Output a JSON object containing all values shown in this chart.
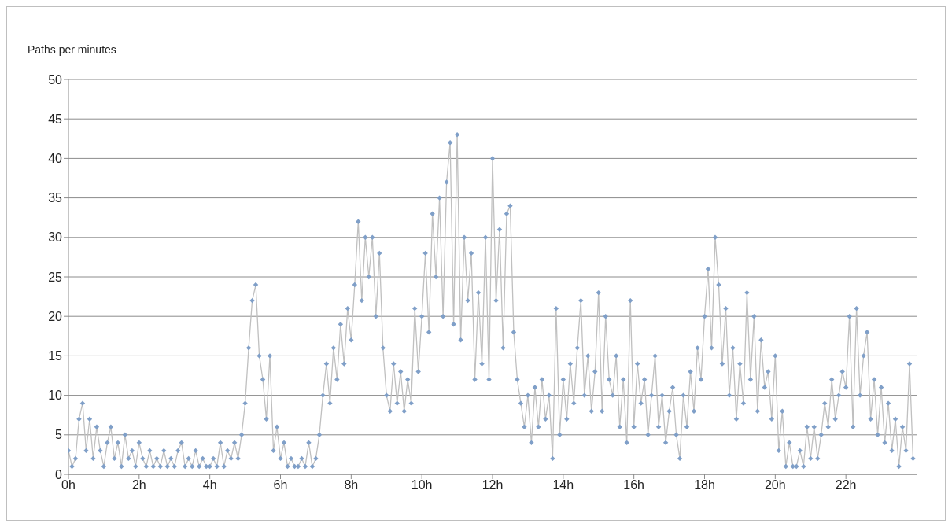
{
  "chart_data": {
    "type": "line",
    "ylabel": "Paths per minutes",
    "x": [
      0,
      0.1,
      0.2,
      0.3,
      0.4,
      0.5,
      0.6,
      0.7,
      0.8,
      0.9,
      1,
      1.1,
      1.2,
      1.3,
      1.4,
      1.5,
      1.6,
      1.7,
      1.8,
      1.9,
      2,
      2.1,
      2.2,
      2.3,
      2.4,
      2.5,
      2.6,
      2.7,
      2.8,
      2.9,
      3,
      3.1,
      3.2,
      3.3,
      3.4,
      3.5,
      3.6,
      3.7,
      3.8,
      3.9,
      4,
      4.1,
      4.2,
      4.3,
      4.4,
      4.5,
      4.6,
      4.7,
      4.8,
      4.9,
      5,
      5.1,
      5.2,
      5.3,
      5.4,
      5.5,
      5.6,
      5.7,
      5.8,
      5.9,
      6,
      6.1,
      6.2,
      6.3,
      6.4,
      6.5,
      6.6,
      6.7,
      6.8,
      6.9,
      7,
      7.1,
      7.2,
      7.3,
      7.4,
      7.5,
      7.6,
      7.7,
      7.8,
      7.9,
      8,
      8.1,
      8.2,
      8.3,
      8.4,
      8.5,
      8.6,
      8.7,
      8.8,
      8.9,
      9,
      9.1,
      9.2,
      9.3,
      9.4,
      9.5,
      9.6,
      9.7,
      9.8,
      9.9,
      10,
      10.1,
      10.2,
      10.3,
      10.4,
      10.5,
      10.6,
      10.7,
      10.8,
      10.9,
      11,
      11.1,
      11.2,
      11.3,
      11.4,
      11.5,
      11.6,
      11.7,
      11.8,
      11.9,
      12,
      12.1,
      12.2,
      12.3,
      12.4,
      12.5,
      12.6,
      12.7,
      12.8,
      12.9,
      13,
      13.1,
      13.2,
      13.3,
      13.4,
      13.5,
      13.6,
      13.7,
      13.8,
      13.9,
      14,
      14.1,
      14.2,
      14.3,
      14.4,
      14.5,
      14.6,
      14.7,
      14.8,
      14.9,
      15,
      15.1,
      15.2,
      15.3,
      15.4,
      15.5,
      15.6,
      15.7,
      15.8,
      15.9,
      16,
      16.1,
      16.2,
      16.3,
      16.4,
      16.5,
      16.6,
      16.7,
      16.8,
      16.9,
      17,
      17.1,
      17.2,
      17.3,
      17.4,
      17.5,
      17.6,
      17.7,
      17.8,
      17.9,
      18,
      18.1,
      18.2,
      18.3,
      18.4,
      18.5,
      18.6,
      18.7,
      18.8,
      18.9,
      19,
      19.1,
      19.2,
      19.3,
      19.4,
      19.5,
      19.6,
      19.7,
      19.8,
      19.9,
      20,
      20.1,
      20.2,
      20.3,
      20.4,
      20.5,
      20.6,
      20.7,
      20.8,
      20.9,
      21,
      21.1,
      21.2,
      21.3,
      21.4,
      21.5,
      21.6,
      21.7,
      21.8,
      21.9,
      22,
      22.1,
      22.2,
      22.3,
      22.4,
      22.5,
      22.6,
      22.7,
      22.8,
      22.9,
      23,
      23.1,
      23.2,
      23.3,
      23.4,
      23.5,
      23.6,
      23.7,
      23.8,
      23.9
    ],
    "series": [
      {
        "color": "#7f9fc8",
        "values": [
          3,
          1,
          2,
          7,
          9,
          3,
          7,
          2,
          6,
          3,
          1,
          4,
          6,
          2,
          4,
          1,
          5,
          2,
          3,
          1,
          4,
          2,
          1,
          3,
          1,
          2,
          1,
          3,
          1,
          2,
          1,
          3,
          4,
          1,
          2,
          1,
          3,
          1,
          2,
          1,
          1,
          2,
          1,
          4,
          1,
          3,
          2,
          4,
          2,
          5,
          9,
          16,
          22,
          24,
          15,
          12,
          7,
          15,
          3,
          6,
          2,
          4,
          1,
          2,
          1,
          1,
          2,
          1,
          4,
          1,
          2,
          5,
          10,
          14,
          9,
          16,
          12,
          19,
          14,
          21,
          17,
          24,
          32,
          22,
          30,
          25,
          30,
          20,
          28,
          16,
          10,
          8,
          14,
          9,
          13,
          8,
          12,
          9,
          21,
          13,
          20,
          28,
          18,
          33,
          25,
          35,
          20,
          37,
          42,
          19,
          43,
          17,
          30,
          22,
          28,
          12,
          23,
          14,
          30,
          12,
          40,
          22,
          31,
          16,
          33,
          34,
          18,
          12,
          9,
          6,
          10,
          4,
          11,
          6,
          12,
          7,
          10,
          2,
          21,
          5,
          12,
          7,
          14,
          9,
          16,
          22,
          10,
          15,
          8,
          13,
          23,
          8,
          20,
          12,
          10,
          15,
          6,
          12,
          4,
          22,
          6,
          14,
          9,
          12,
          5,
          10,
          15,
          6,
          10,
          4,
          8,
          11,
          5,
          2,
          10,
          6,
          13,
          8,
          16,
          12,
          20,
          26,
          16,
          30,
          24,
          14,
          21,
          10,
          16,
          7,
          14,
          9,
          23,
          12,
          20,
          8,
          17,
          11,
          13,
          7,
          15,
          3,
          8,
          1,
          4,
          1,
          1,
          3,
          1,
          6,
          2,
          6,
          2,
          5,
          9,
          6,
          12,
          7,
          10,
          13,
          11,
          20,
          6,
          21,
          10,
          15,
          18,
          7,
          12,
          5,
          11,
          4,
          9,
          3,
          7,
          1,
          6,
          3,
          14,
          2
        ]
      }
    ],
    "xlim": [
      0,
      24
    ],
    "xticks": [
      {
        "value": 0,
        "label": "0h"
      },
      {
        "value": 2,
        "label": "2h"
      },
      {
        "value": 4,
        "label": "4h"
      },
      {
        "value": 6,
        "label": "6h"
      },
      {
        "value": 8,
        "label": "8h"
      },
      {
        "value": 10,
        "label": "10h"
      },
      {
        "value": 12,
        "label": "12h"
      },
      {
        "value": 14,
        "label": "14h"
      },
      {
        "value": 16,
        "label": "16h"
      },
      {
        "value": 18,
        "label": "18h"
      },
      {
        "value": 20,
        "label": "20h"
      },
      {
        "value": 22,
        "label": "22h"
      }
    ],
    "ylim": [
      0,
      50
    ],
    "yticks": [
      0,
      5,
      10,
      15,
      20,
      25,
      30,
      35,
      40,
      45,
      50
    ],
    "grid": "y",
    "legend": false,
    "marker": "diamond",
    "line_style": "solid"
  }
}
